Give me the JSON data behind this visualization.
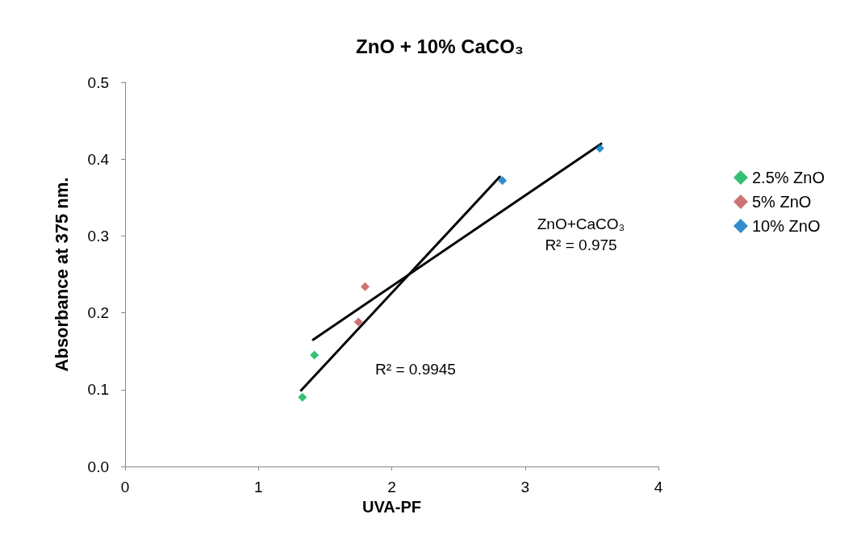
{
  "chart_data": {
    "type": "scatter",
    "title": "ZnO + 10% CaCO₃",
    "xlabel": "UVA-PF",
    "ylabel": "Absorbance at 375 nm.",
    "xlim": [
      0,
      4
    ],
    "xticks": [
      0,
      1,
      2,
      3,
      4
    ],
    "ylim": [
      0,
      0.5
    ],
    "yticks": [
      {
        "value": 0,
        "label": "0.0"
      },
      0.1,
      0.2,
      0.3,
      0.4,
      0.5
    ],
    "grid": false,
    "legend": "right",
    "marker": "diamond",
    "series": [
      {
        "name": "2.5% ZnO",
        "color": "#00b050",
        "x": [
          1.33,
          1.42
        ],
        "values": [
          0.09,
          0.145
        ]
      },
      {
        "name": "5% ZnO",
        "color": "#c0504d",
        "x": [
          1.75,
          1.8
        ],
        "values": [
          0.188,
          0.234
        ]
      },
      {
        "name": "10% ZnO",
        "color": "#0070c0",
        "x": [
          2.83,
          3.56
        ],
        "values": [
          0.372,
          0.414
        ]
      },
      {
        "type": "line",
        "color": "#000000",
        "marker": "none",
        "x": [
          1.32,
          2.81
        ],
        "values": [
          0.099,
          0.377
        ]
      },
      {
        "type": "line",
        "color": "#000000",
        "marker": "none",
        "x": [
          1.41,
          3.57
        ],
        "values": [
          0.165,
          0.42
        ]
      }
    ],
    "annotations": [
      "ZnO+CaCO₃\nR² = 0.975",
      "R² = 0.9945"
    ]
  }
}
